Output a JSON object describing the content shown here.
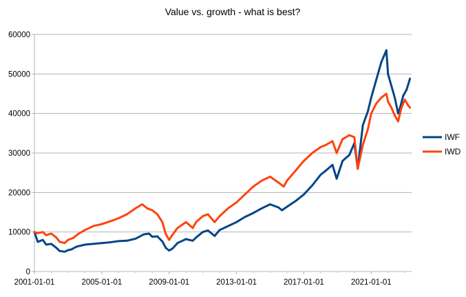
{
  "chart_data": {
    "type": "line",
    "title": "Value vs. growth - what is best?",
    "xlabel": "",
    "ylabel": "",
    "x_start_year": 2001,
    "x_end_year": 2023.4,
    "ylim": [
      0,
      60000
    ],
    "y_ticks": [
      "0",
      "10000",
      "20000",
      "30000",
      "40000",
      "50000",
      "60000"
    ],
    "x_ticks": [
      "2001-01-01",
      "2005-01-01",
      "2009-01-01",
      "2013-01-01",
      "2017-01-01",
      "2021-01-01"
    ],
    "grid": true,
    "legend_position": "right",
    "series": [
      {
        "name": "IWF",
        "color": "#004586",
        "x": [
          2001.0,
          2001.2,
          2001.5,
          2001.7,
          2002.0,
          2002.3,
          2002.5,
          2002.8,
          2003.0,
          2003.2,
          2003.5,
          2004.0,
          2004.5,
          2005.0,
          2005.5,
          2006.0,
          2006.5,
          2007.0,
          2007.5,
          2007.8,
          2008.0,
          2008.3,
          2008.6,
          2008.8,
          2009.0,
          2009.2,
          2009.5,
          2010.0,
          2010.4,
          2010.6,
          2011.0,
          2011.3,
          2011.7,
          2012.0,
          2012.5,
          2013.0,
          2013.5,
          2014.0,
          2014.5,
          2015.0,
          2015.5,
          2015.7,
          2016.0,
          2016.5,
          2017.0,
          2017.5,
          2018.0,
          2018.3,
          2018.7,
          2018.95,
          2019.3,
          2019.7,
          2020.0,
          2020.2,
          2020.5,
          2020.8,
          2021.0,
          2021.3,
          2021.6,
          2021.9,
          2022.0,
          2022.2,
          2022.4,
          2022.6,
          2022.75,
          2022.9,
          2023.1,
          2023.3
        ],
        "values": [
          10000,
          7500,
          8000,
          6800,
          7000,
          6000,
          5200,
          5000,
          5400,
          5600,
          6300,
          6800,
          7000,
          7200,
          7400,
          7700,
          7800,
          8300,
          9400,
          9600,
          8800,
          8900,
          7600,
          6000,
          5300,
          5800,
          7200,
          8200,
          7800,
          8600,
          10000,
          10400,
          9000,
          10500,
          11500,
          12500,
          13800,
          14800,
          16000,
          17000,
          16200,
          15500,
          16400,
          17800,
          19500,
          21800,
          24500,
          25500,
          27000,
          23500,
          28000,
          29500,
          32500,
          26000,
          37000,
          40500,
          44000,
          48500,
          53000,
          56000,
          50000,
          47000,
          44000,
          40000,
          42000,
          44500,
          46000,
          48800
        ]
      },
      {
        "name": "IWD",
        "color": "#ff420e",
        "x": [
          2001.0,
          2001.2,
          2001.5,
          2001.7,
          2002.0,
          2002.3,
          2002.5,
          2002.8,
          2003.0,
          2003.3,
          2003.6,
          2004.0,
          2004.5,
          2005.0,
          2005.5,
          2006.0,
          2006.5,
          2007.0,
          2007.4,
          2007.7,
          2008.0,
          2008.3,
          2008.6,
          2008.8,
          2009.0,
          2009.2,
          2009.5,
          2010.0,
          2010.4,
          2010.6,
          2011.0,
          2011.3,
          2011.7,
          2012.0,
          2012.5,
          2013.0,
          2013.5,
          2014.0,
          2014.5,
          2015.0,
          2015.5,
          2015.8,
          2016.0,
          2016.5,
          2017.0,
          2017.5,
          2018.0,
          2018.3,
          2018.7,
          2018.95,
          2019.3,
          2019.7,
          2020.0,
          2020.2,
          2020.5,
          2020.8,
          2021.0,
          2021.3,
          2021.6,
          2021.9,
          2022.0,
          2022.2,
          2022.4,
          2022.6,
          2022.8,
          2023.0,
          2023.2,
          2023.3
        ],
        "values": [
          10000,
          9700,
          10000,
          9200,
          9600,
          8600,
          7500,
          7200,
          8000,
          8500,
          9500,
          10500,
          11500,
          12000,
          12700,
          13500,
          14500,
          16000,
          17000,
          16000,
          15500,
          14500,
          12500,
          9500,
          8000,
          9300,
          11000,
          12500,
          11000,
          12500,
          14000,
          14500,
          12500,
          14000,
          16000,
          17500,
          19500,
          21500,
          23000,
          24000,
          22500,
          21500,
          23000,
          25500,
          28000,
          30000,
          31500,
          32000,
          33000,
          30000,
          33500,
          34500,
          34000,
          26000,
          32000,
          36000,
          40000,
          42500,
          44000,
          45000,
          43000,
          41500,
          39500,
          38000,
          41500,
          43500,
          42000,
          41500
        ]
      }
    ]
  }
}
